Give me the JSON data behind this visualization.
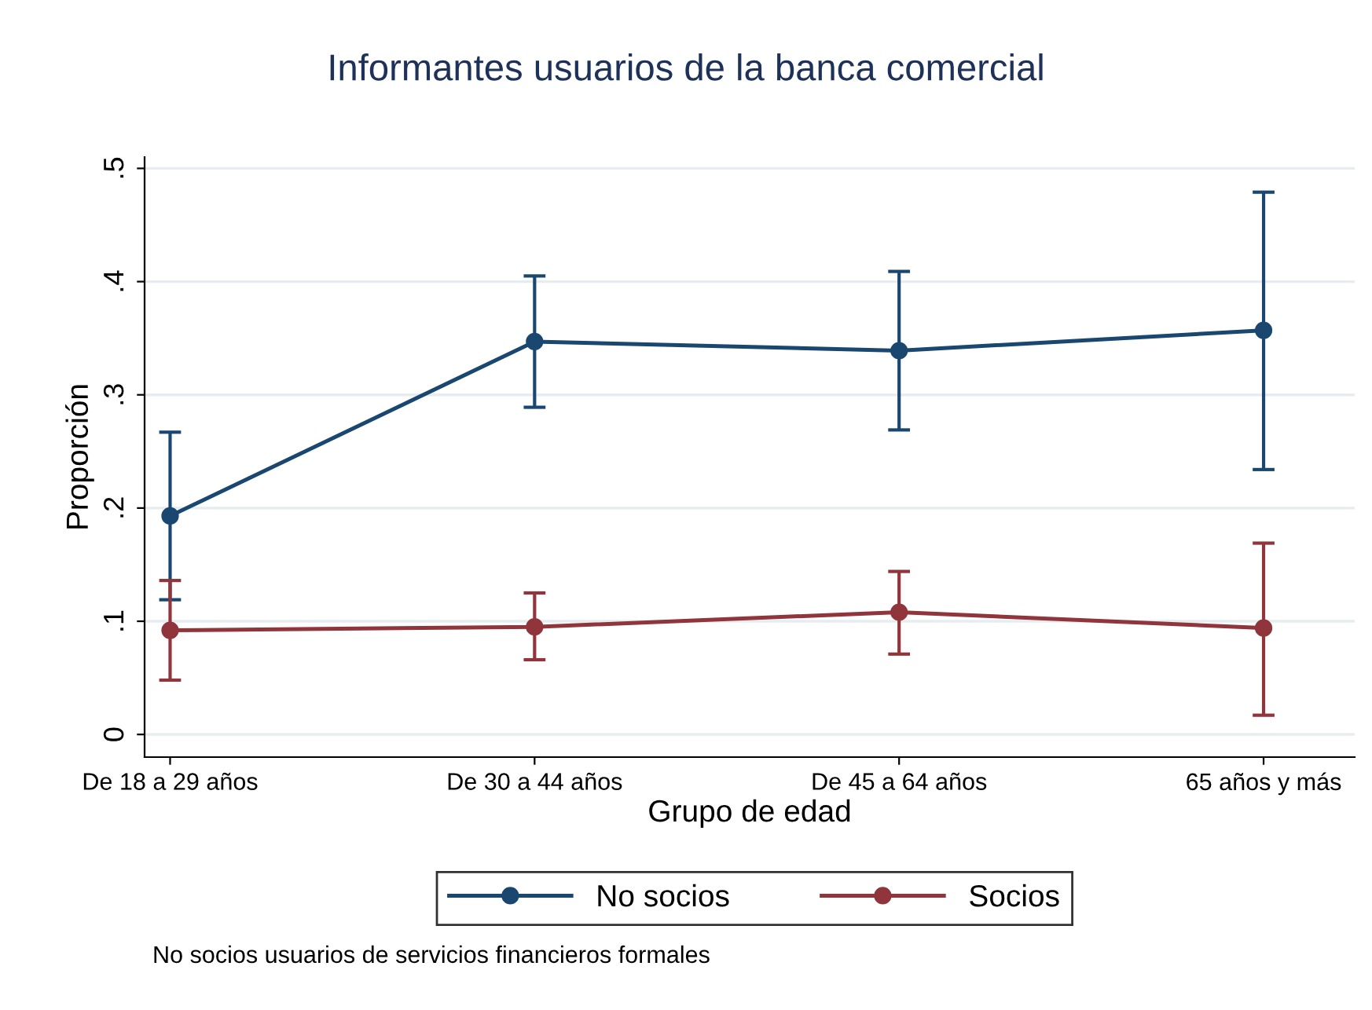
{
  "chart_data": {
    "type": "line",
    "title": "Informantes usuarios de la banca comercial",
    "xlabel": "Grupo de edad",
    "ylabel": "Proporción",
    "categories": [
      "De 18 a 29 años",
      "De 30 a 44 años",
      "De 45 a 64 años",
      "65 años y más"
    ],
    "series": [
      {
        "name": "No socios",
        "color": "#1a476f",
        "values": [
          0.193,
          0.347,
          0.339,
          0.357
        ],
        "errors": [
          [
            0.119,
            0.267
          ],
          [
            0.289,
            0.405
          ],
          [
            0.269,
            0.409
          ],
          [
            0.234,
            0.479
          ]
        ]
      },
      {
        "name": "Socios",
        "color": "#90353b",
        "values": [
          0.092,
          0.095,
          0.108,
          0.094
        ],
        "errors": [
          [
            0.048,
            0.136
          ],
          [
            0.066,
            0.125
          ],
          [
            0.071,
            0.144
          ],
          [
            0.017,
            0.169
          ]
        ]
      }
    ],
    "ylim": [
      -0.02,
      0.51
    ],
    "yticks": [
      {
        "value": 0,
        "label": "0"
      },
      {
        "value": 0.1,
        "label": ".1"
      },
      {
        "value": 0.2,
        "label": ".2"
      },
      {
        "value": 0.3,
        "label": ".3"
      },
      {
        "value": 0.4,
        "label": ".4"
      },
      {
        "value": 0.5,
        "label": ".5"
      }
    ],
    "grid": "y",
    "legend": "bottom",
    "marker": "circle",
    "line_style": "solid",
    "annotations": [
      "No socios usuarios de servicios financieros formales"
    ]
  }
}
